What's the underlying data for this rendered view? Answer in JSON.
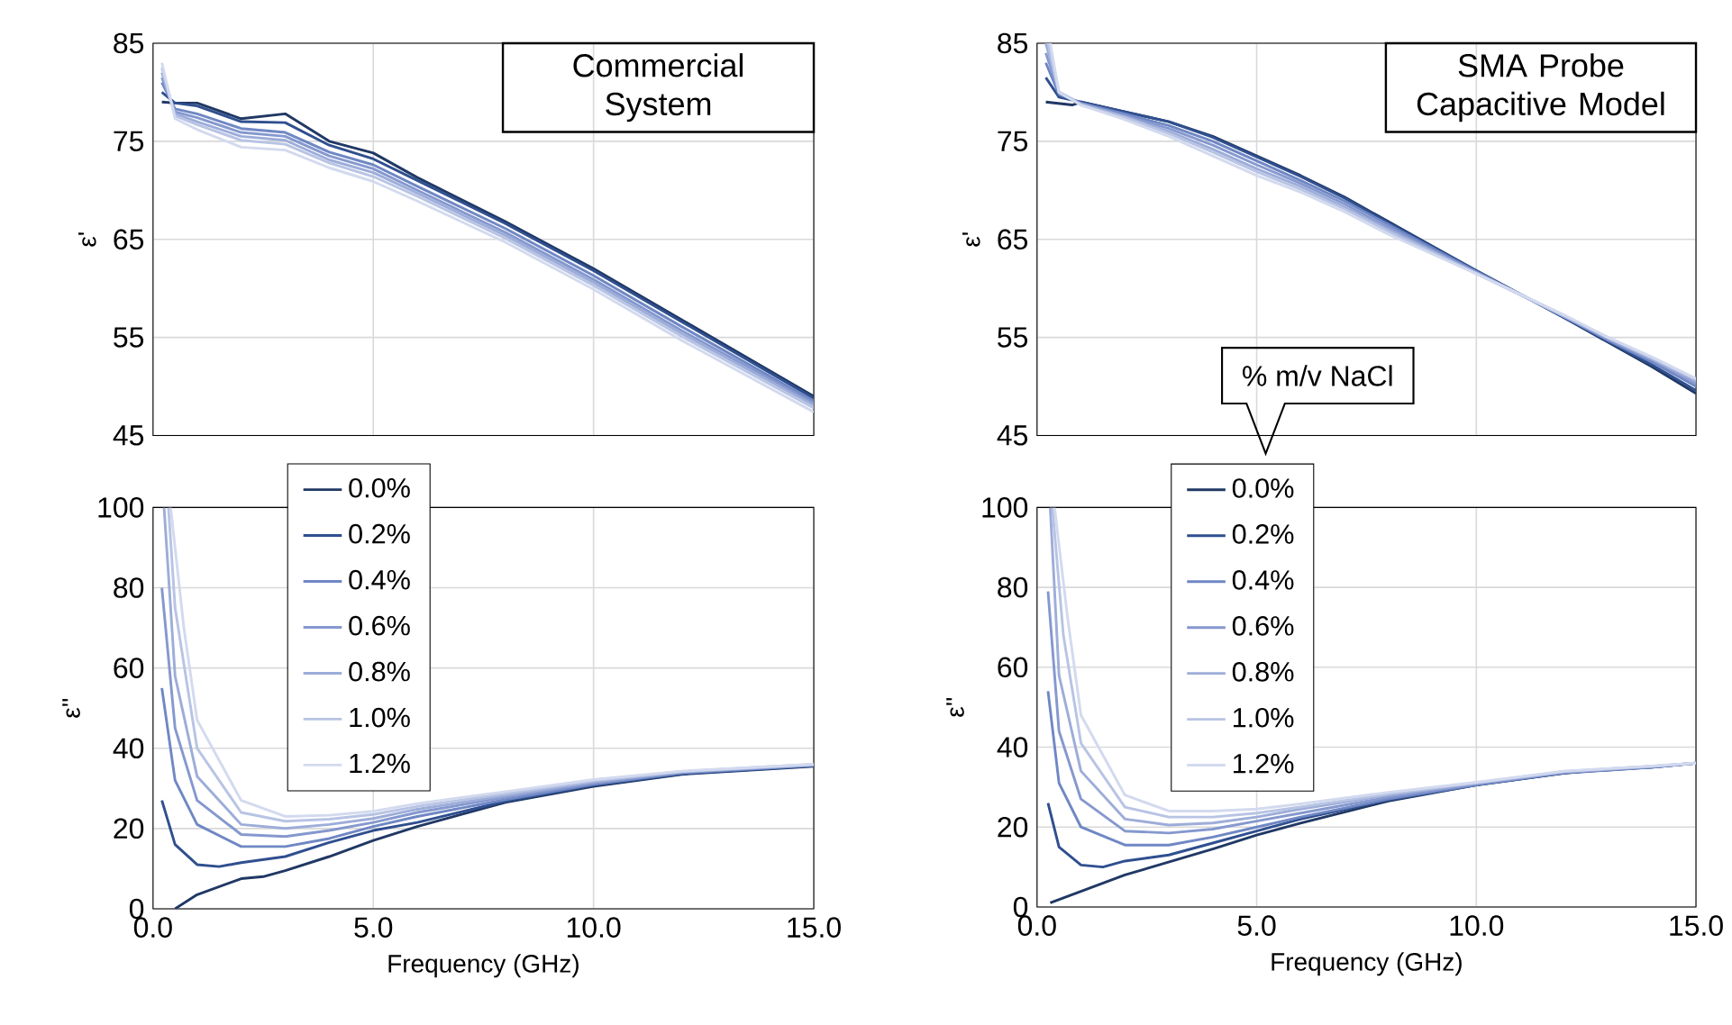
{
  "chart_data": [
    {
      "type": "line",
      "ylabel": "ε'",
      "xlim": [
        0,
        15
      ],
      "ylim": [
        45,
        85
      ],
      "xticks": [
        {
          "value": 0,
          "label": null
        },
        {
          "value": 5,
          "label": null
        },
        {
          "value": 10,
          "label": null
        },
        {
          "value": 15,
          "label": null
        }
      ],
      "yticks": [
        45,
        55,
        65,
        75,
        85
      ],
      "grid": true,
      "tick_labels": "y",
      "annotations": [
        "Commercial System"
      ],
      "series": [
        {
          "color": "#203864",
          "x": [
            0.2,
            0.5,
            1,
            2,
            3,
            4,
            5,
            6,
            8,
            10,
            12,
            15
          ],
          "values": [
            79.0,
            78.9,
            78.9,
            77.3,
            77.8,
            75.0,
            73.8,
            71.3,
            66.8,
            62.0,
            56.8,
            49.0
          ]
        },
        {
          "color": "#2f4f8f",
          "x": [
            0.2,
            0.5,
            1,
            2,
            3,
            4,
            5,
            6,
            8,
            10,
            12,
            15
          ],
          "values": [
            80.0,
            78.9,
            78.6,
            77.0,
            76.9,
            74.6,
            73.2,
            71.0,
            66.6,
            61.8,
            56.6,
            48.8
          ]
        },
        {
          "color": "#6f87c4",
          "x": [
            0.2,
            0.5,
            1,
            2,
            3,
            4,
            5,
            6,
            8,
            10,
            12,
            15
          ],
          "values": [
            81.0,
            78.3,
            77.8,
            76.3,
            75.9,
            73.9,
            72.6,
            70.4,
            66.1,
            61.3,
            56.1,
            48.5
          ]
        },
        {
          "color": "#8598cf",
          "x": [
            0.2,
            0.5,
            1,
            2,
            3,
            4,
            5,
            6,
            8,
            10,
            12,
            15
          ],
          "values": [
            81.5,
            78.0,
            77.4,
            75.9,
            75.5,
            73.5,
            72.2,
            70.0,
            65.7,
            60.9,
            55.7,
            48.3
          ]
        },
        {
          "color": "#9dadd9",
          "x": [
            0.2,
            0.5,
            1,
            2,
            3,
            4,
            5,
            6,
            8,
            10,
            12,
            15
          ],
          "values": [
            82.0,
            77.8,
            77.0,
            75.5,
            75.1,
            73.1,
            71.8,
            69.7,
            65.4,
            60.6,
            55.4,
            48.1
          ]
        },
        {
          "color": "#b8c4e4",
          "x": [
            0.2,
            0.5,
            1,
            2,
            3,
            4,
            5,
            6,
            8,
            10,
            12,
            15
          ],
          "values": [
            82.5,
            77.6,
            76.7,
            75.1,
            74.7,
            72.8,
            71.4,
            69.4,
            65.1,
            60.3,
            55.1,
            47.8
          ]
        },
        {
          "color": "#d3daef",
          "x": [
            0.2,
            0.5,
            1,
            2,
            3,
            4,
            5,
            6,
            8,
            10,
            12,
            15
          ],
          "values": [
            83.0,
            77.3,
            76.2,
            74.4,
            74.1,
            72.3,
            70.9,
            68.9,
            64.7,
            59.9,
            54.7,
            47.4
          ]
        }
      ]
    },
    {
      "type": "line",
      "ylabel": "ε'",
      "xlim": [
        0,
        15
      ],
      "ylim": [
        45,
        85
      ],
      "xticks": [
        {
          "value": 0,
          "label": null
        },
        {
          "value": 5,
          "label": null
        },
        {
          "value": 10,
          "label": null
        },
        {
          "value": 15,
          "label": null
        }
      ],
      "yticks": [
        45,
        55,
        65,
        75,
        85
      ],
      "grid": true,
      "tick_labels": "y",
      "annotations": [
        "SMA Probe Capacitive Model"
      ],
      "series": [
        {
          "color": "#203864",
          "x": [
            0.2,
            0.8,
            1,
            2,
            3,
            4,
            5,
            6,
            7,
            8,
            10,
            12,
            13,
            14,
            15
          ],
          "values": [
            79.0,
            78.7,
            79.0,
            78.0,
            77.0,
            75.5,
            73.5,
            71.5,
            69.3,
            66.8,
            61.8,
            57.0,
            54.5,
            52.0,
            49.3
          ]
        },
        {
          "color": "#2f4f8f",
          "x": [
            0.2,
            0.5,
            1,
            2,
            3,
            4,
            5,
            6,
            7,
            8,
            10,
            12,
            13,
            14,
            15
          ],
          "values": [
            81.5,
            79.5,
            79.0,
            78.0,
            77.0,
            75.4,
            73.4,
            71.4,
            69.2,
            66.7,
            61.8,
            57.0,
            54.6,
            52.2,
            49.6
          ]
        },
        {
          "color": "#6f87c4",
          "x": [
            0.2,
            0.5,
            1,
            2,
            3,
            4,
            5,
            6,
            7,
            8,
            10,
            12,
            13,
            14,
            15
          ],
          "values": [
            83.0,
            79.8,
            78.9,
            77.8,
            76.6,
            75.0,
            73.0,
            71.0,
            68.9,
            66.5,
            61.7,
            57.1,
            54.7,
            52.5,
            50.0
          ]
        },
        {
          "color": "#8598cf",
          "x": [
            0.2,
            0.5,
            1,
            2,
            3,
            4,
            5,
            6,
            7,
            8,
            10,
            12,
            13,
            14,
            15
          ],
          "values": [
            84.0,
            80.0,
            78.8,
            77.6,
            76.3,
            74.6,
            72.6,
            70.7,
            68.6,
            66.2,
            61.6,
            57.1,
            54.8,
            52.7,
            50.3
          ]
        },
        {
          "color": "#9dadd9",
          "x": [
            0.2,
            0.5,
            1,
            2,
            3,
            4,
            5,
            6,
            7,
            8,
            10,
            12,
            13,
            14,
            15
          ],
          "values": [
            85.0,
            80.0,
            78.8,
            77.5,
            76.0,
            74.2,
            72.2,
            70.4,
            68.3,
            66.0,
            61.6,
            57.2,
            54.9,
            52.8,
            50.5
          ]
        },
        {
          "color": "#b8c4e4",
          "x": [
            0.25,
            0.5,
            1,
            2,
            3,
            4,
            5,
            6,
            7,
            8,
            10,
            12,
            13,
            14,
            15
          ],
          "values": [
            85.0,
            80.0,
            78.7,
            77.4,
            75.8,
            73.9,
            71.9,
            70.1,
            68.1,
            65.8,
            61.5,
            57.2,
            55.0,
            52.9,
            50.7
          ]
        },
        {
          "color": "#d3daef",
          "x": [
            0.3,
            0.5,
            1,
            2,
            3,
            4,
            5,
            6,
            7,
            8,
            10,
            12,
            13,
            14,
            15
          ],
          "values": [
            85.0,
            80.0,
            78.7,
            77.2,
            75.5,
            73.5,
            71.5,
            69.8,
            67.8,
            65.5,
            61.5,
            57.3,
            55.0,
            53.0,
            50.8
          ]
        }
      ]
    },
    {
      "type": "line",
      "xlabel": "Frequency (GHz)",
      "ylabel": "ε''",
      "xlim": [
        0,
        15
      ],
      "ylim": [
        0,
        100
      ],
      "xticks": [
        {
          "value": 0,
          "label": "0.0"
        },
        {
          "value": 5,
          "label": "5.0"
        },
        {
          "value": 10,
          "label": "10.0"
        },
        {
          "value": 15,
          "label": "15.0"
        }
      ],
      "yticks": [
        0,
        20,
        40,
        60,
        80,
        100
      ],
      "grid": true,
      "legend": "top left",
      "series": [
        {
          "name": "0.0%",
          "color": "#203864",
          "x": [
            0.5,
            1,
            2,
            2.5,
            3,
            4,
            5,
            6,
            7,
            8,
            10,
            12,
            15
          ],
          "values": [
            0,
            3.5,
            7.5,
            8,
            9.5,
            13,
            17,
            20.5,
            23.5,
            26.5,
            30.5,
            33.5,
            35.5
          ]
        },
        {
          "name": "0.2%",
          "color": "#2f4f8f",
          "x": [
            0.2,
            0.5,
            1,
            1.5,
            2,
            3,
            4,
            5,
            6,
            8,
            10,
            12,
            15
          ],
          "values": [
            27,
            16,
            11,
            10.5,
            11.5,
            13,
            16.5,
            19.5,
            21.5,
            26.8,
            30.8,
            33.6,
            35.6
          ]
        },
        {
          "name": "0.4%",
          "color": "#6f87c4",
          "x": [
            0.2,
            0.5,
            1,
            2,
            3,
            4,
            5,
            6,
            8,
            10,
            12,
            15
          ],
          "values": [
            55,
            32,
            21,
            15.5,
            15.5,
            17.5,
            20.5,
            23,
            27.2,
            31,
            33.8,
            35.7
          ]
        },
        {
          "name": "0.6%",
          "color": "#8598cf",
          "x": [
            0.2,
            0.5,
            1,
            2,
            3,
            4,
            5,
            6,
            8,
            10,
            12,
            15
          ],
          "values": [
            80,
            45,
            27,
            18.5,
            18,
            19.5,
            21.5,
            24,
            27.8,
            31.3,
            34,
            35.8
          ]
        },
        {
          "name": "0.8%",
          "color": "#9dadd9",
          "x": [
            0.25,
            0.5,
            1,
            2,
            3,
            4,
            5,
            6,
            8,
            10,
            12,
            15
          ],
          "values": [
            100,
            58,
            33,
            21,
            20,
            21,
            22.5,
            24.8,
            28.2,
            31.6,
            34.1,
            35.9
          ]
        },
        {
          "name": "1.0%",
          "color": "#b8c4e4",
          "x": [
            0.35,
            0.5,
            1,
            2,
            3,
            4,
            5,
            6,
            8,
            10,
            12,
            15
          ],
          "values": [
            100,
            75,
            40,
            24,
            21.8,
            22.3,
            23.5,
            25.5,
            28.7,
            31.9,
            34.2,
            36
          ]
        },
        {
          "name": "1.2%",
          "color": "#d3daef",
          "x": [
            0.4,
            0.7,
            1,
            2,
            3,
            4,
            5,
            6,
            8,
            10,
            12,
            15
          ],
          "values": [
            100,
            70,
            47,
            27,
            23,
            23.3,
            24.3,
            26.2,
            29.2,
            32.2,
            34.3,
            36
          ]
        }
      ]
    },
    {
      "type": "line",
      "xlabel": "Frequency (GHz)",
      "ylabel": "ε''",
      "xlim": [
        0,
        15
      ],
      "ylim": [
        0,
        100
      ],
      "xticks": [
        {
          "value": 0,
          "label": "0.0"
        },
        {
          "value": 5,
          "label": "5.0"
        },
        {
          "value": 10,
          "label": "10.0"
        },
        {
          "value": 15,
          "label": "15.0"
        }
      ],
      "yticks": [
        0,
        20,
        40,
        60,
        80,
        100
      ],
      "grid": true,
      "legend": "top left",
      "legend_title": "% m/v NaCl",
      "series": [
        {
          "name": "0.0%",
          "color": "#203864",
          "x": [
            0.3,
            2,
            4,
            5,
            6,
            8,
            10,
            12,
            13,
            14,
            15
          ],
          "values": [
            1,
            8,
            14.5,
            18,
            21,
            26.5,
            30.5,
            33.5,
            34.5,
            35,
            36
          ]
        },
        {
          "name": "0.2%",
          "color": "#2f4f8f",
          "x": [
            0.25,
            0.5,
            1,
            1.5,
            2,
            3,
            4,
            5,
            6,
            8,
            10,
            12,
            14,
            15
          ],
          "values": [
            26,
            15,
            10.5,
            10,
            11.5,
            13,
            16,
            19,
            22,
            26.8,
            30.5,
            33.5,
            35,
            36
          ]
        },
        {
          "name": "0.4%",
          "color": "#6f87c4",
          "x": [
            0.25,
            0.5,
            1,
            2,
            3,
            4,
            5,
            6,
            8,
            10,
            12,
            14,
            15
          ],
          "values": [
            54,
            31,
            20,
            15.5,
            15.5,
            17.5,
            20,
            22.5,
            27,
            30.6,
            33.6,
            35,
            36
          ]
        },
        {
          "name": "0.6%",
          "color": "#8598cf",
          "x": [
            0.25,
            0.5,
            1,
            2,
            3,
            4,
            5,
            6,
            8,
            10,
            12,
            14,
            15
          ],
          "values": [
            79,
            44,
            27,
            19,
            18.5,
            19.5,
            21.5,
            23.5,
            27.5,
            30.8,
            33.7,
            35.1,
            36
          ]
        },
        {
          "name": "0.8%",
          "color": "#9dadd9",
          "x": [
            0.3,
            0.5,
            1,
            2,
            3,
            4,
            5,
            6,
            8,
            10,
            12,
            14,
            15
          ],
          "values": [
            100,
            58,
            34,
            22,
            20.5,
            21,
            22.5,
            24.5,
            28,
            31,
            33.8,
            35.2,
            36
          ]
        },
        {
          "name": "1.0%",
          "color": "#b8c4e4",
          "x": [
            0.35,
            0.6,
            1,
            2,
            3,
            4,
            5,
            6,
            8,
            10,
            12,
            14,
            15
          ],
          "values": [
            100,
            68,
            41,
            25,
            22.5,
            22.5,
            23.5,
            25,
            28.3,
            31.1,
            33.9,
            35.2,
            36
          ]
        },
        {
          "name": "1.2%",
          "color": "#d3daef",
          "x": [
            0.4,
            0.7,
            1,
            2,
            3,
            4,
            5,
            6,
            8,
            10,
            12,
            14,
            15
          ],
          "values": [
            100,
            72,
            48,
            28,
            24,
            24,
            24.5,
            25.8,
            28.7,
            31.2,
            34,
            35.3,
            36
          ]
        }
      ]
    }
  ]
}
